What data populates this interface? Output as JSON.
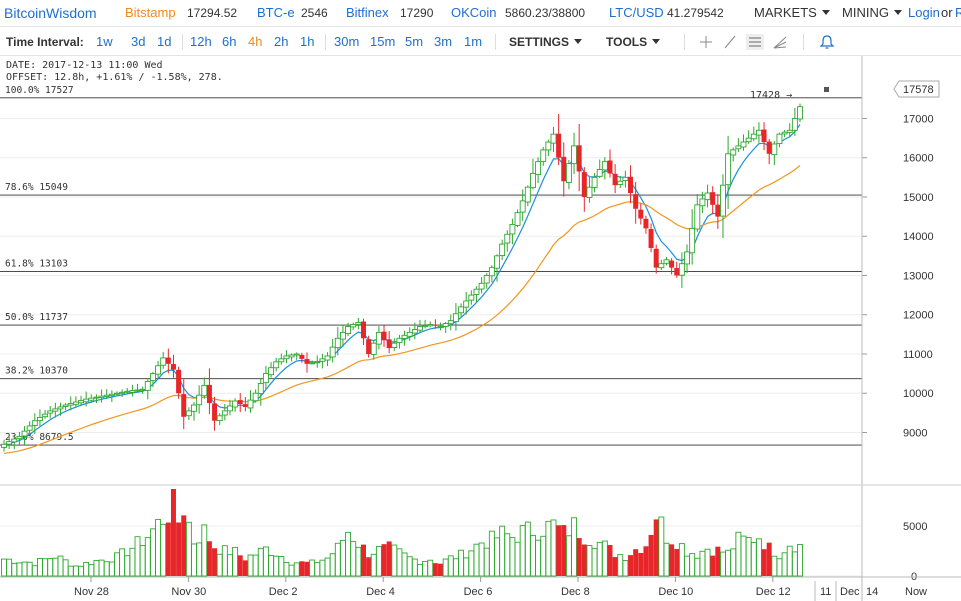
{
  "topbar": {
    "brand": "BitcoinWisdom",
    "markets": [
      {
        "name": "Bitstamp",
        "price": "17294.52",
        "active": true
      },
      {
        "name": "BTC-e",
        "price": "2546",
        "active": false
      },
      {
        "name": "Bitfinex",
        "price": "17290",
        "active": false
      },
      {
        "name": "OKCoin",
        "price": "5860.23/38800",
        "active": false
      },
      {
        "name": "LTC/USD",
        "price": "41.279542",
        "active": false
      }
    ],
    "menu_markets": "MARKETS",
    "menu_mining": "MINING",
    "login": "Login",
    "or": "or",
    "register": "R"
  },
  "toolbar": {
    "interval_label": "Time Interval:",
    "intervals": [
      "1w",
      "3d",
      "1d",
      "12h",
      "6h",
      "4h",
      "2h",
      "1h",
      "30m",
      "15m",
      "5m",
      "3m",
      "1m"
    ],
    "active_interval": "4h",
    "settings": "SETTINGS",
    "tools": "TOOLS"
  },
  "info": {
    "date": "DATE: 2017-12-13 11:00 Wed",
    "offset": "OFFSET: 12.8h, +1.61% / -1.58%, 278."
  },
  "chart_data": {
    "type": "candlestick",
    "symbol_price_tag": "17578",
    "last_marker": "17428 →",
    "price_axis_ticks": [
      17000,
      16000,
      15000,
      14000,
      13000,
      12000,
      11000,
      10000,
      9000
    ],
    "volume_axis_ticks": [
      5000,
      0
    ],
    "x_labels": [
      "Nov 28",
      "Nov 30",
      "Dec 2",
      "Dec 4",
      "Dec 6",
      "Dec 8",
      "Dec 10",
      "Dec 12"
    ],
    "x_labels_right": [
      "11",
      "Dec",
      "14",
      "Now"
    ],
    "fib_levels": [
      {
        "label": "100.0% 17527",
        "price": 17527
      },
      {
        "label": "78.6% 15049",
        "price": 15049
      },
      {
        "label": "61.8% 13103",
        "price": 13103
      },
      {
        "label": "50.0% 11737",
        "price": 11737
      },
      {
        "label": "38.2% 10370",
        "price": 10370
      },
      {
        "label": "23.6% 8679.5",
        "price": 8679.5
      }
    ],
    "colors": {
      "up": "#2ea82e",
      "down": "#e8262a",
      "ema_fast": "#1a8fe0",
      "ema_slow": "#f0961e",
      "grid": "#eeeeee"
    },
    "candle_anchors": [
      [
        0,
        8700
      ],
      [
        3,
        8900
      ],
      [
        6,
        9300
      ],
      [
        9,
        9550
      ],
      [
        12,
        9700
      ],
      [
        16,
        9850
      ],
      [
        20,
        9950
      ],
      [
        24,
        10050
      ],
      [
        27,
        10100
      ],
      [
        29,
        10500
      ],
      [
        31,
        10900
      ],
      [
        33,
        10600
      ],
      [
        35,
        9400
      ],
      [
        37,
        9700
      ],
      [
        39,
        10200
      ],
      [
        41,
        9300
      ],
      [
        43,
        9550
      ],
      [
        45,
        9800
      ],
      [
        47,
        9650
      ],
      [
        49,
        10000
      ],
      [
        51,
        10500
      ],
      [
        53,
        10800
      ],
      [
        55,
        10950
      ],
      [
        57,
        11000
      ],
      [
        59,
        10750
      ],
      [
        61,
        10800
      ],
      [
        63,
        10950
      ],
      [
        65,
        11400
      ],
      [
        67,
        11700
      ],
      [
        69,
        11800
      ],
      [
        71,
        11000
      ],
      [
        73,
        11550
      ],
      [
        75,
        11150
      ],
      [
        77,
        11400
      ],
      [
        79,
        11550
      ],
      [
        81,
        11700
      ],
      [
        83,
        11750
      ],
      [
        85,
        11700
      ],
      [
        87,
        11850
      ],
      [
        89,
        12200
      ],
      [
        91,
        12500
      ],
      [
        93,
        12800
      ],
      [
        95,
        13200
      ],
      [
        97,
        13800
      ],
      [
        99,
        14300
      ],
      [
        101,
        14900
      ],
      [
        103,
        15600
      ],
      [
        105,
        16200
      ],
      [
        107,
        16600
      ],
      [
        109,
        15400
      ],
      [
        111,
        16300
      ],
      [
        113,
        15000
      ],
      [
        115,
        15500
      ],
      [
        117,
        15900
      ],
      [
        119,
        15300
      ],
      [
        121,
        15500
      ],
      [
        123,
        14700
      ],
      [
        125,
        14200
      ],
      [
        127,
        13200
      ],
      [
        129,
        13400
      ],
      [
        131,
        13000
      ],
      [
        133,
        13600
      ],
      [
        135,
        14800
      ],
      [
        137,
        15100
      ],
      [
        139,
        14500
      ],
      [
        141,
        16100
      ],
      [
        143,
        16300
      ],
      [
        145,
        16500
      ],
      [
        147,
        16700
      ],
      [
        149,
        16100
      ],
      [
        151,
        16600
      ],
      [
        153,
        16700
      ],
      [
        155,
        17300
      ]
    ],
    "volume_anchors": [
      [
        0,
        1700
      ],
      [
        6,
        1300
      ],
      [
        10,
        2000
      ],
      [
        14,
        1000
      ],
      [
        18,
        1500
      ],
      [
        22,
        1900
      ],
      [
        24,
        2500
      ],
      [
        26,
        3200
      ],
      [
        28,
        4000
      ],
      [
        30,
        5200
      ],
      [
        31,
        5800
      ],
      [
        33,
        7000
      ],
      [
        34,
        5500
      ],
      [
        35,
        7000
      ],
      [
        37,
        3500
      ],
      [
        39,
        4500
      ],
      [
        41,
        3000
      ],
      [
        43,
        2500
      ],
      [
        45,
        2400
      ],
      [
        47,
        1800
      ],
      [
        49,
        2200
      ],
      [
        51,
        2700
      ],
      [
        53,
        2300
      ],
      [
        56,
        1400
      ],
      [
        60,
        1300
      ],
      [
        63,
        1800
      ],
      [
        65,
        2800
      ],
      [
        67,
        4500
      ],
      [
        69,
        3300
      ],
      [
        71,
        2300
      ],
      [
        73,
        2600
      ],
      [
        75,
        2800
      ],
      [
        77,
        2300
      ],
      [
        79,
        1800
      ],
      [
        81,
        1500
      ],
      [
        83,
        1700
      ],
      [
        85,
        1300
      ],
      [
        87,
        1800
      ],
      [
        89,
        2100
      ],
      [
        91,
        2700
      ],
      [
        93,
        3400
      ],
      [
        95,
        3600
      ],
      [
        97,
        4200
      ],
      [
        99,
        3900
      ],
      [
        101,
        4400
      ],
      [
        103,
        4600
      ],
      [
        105,
        4800
      ],
      [
        107,
        5100
      ],
      [
        109,
        4300
      ],
      [
        111,
        5000
      ],
      [
        113,
        4100
      ],
      [
        115,
        3600
      ],
      [
        117,
        3000
      ],
      [
        119,
        2300
      ],
      [
        121,
        2000
      ],
      [
        123,
        2700
      ],
      [
        125,
        3200
      ],
      [
        127,
        6300
      ],
      [
        129,
        4000
      ],
      [
        131,
        3600
      ],
      [
        133,
        2500
      ],
      [
        135,
        2200
      ],
      [
        137,
        2800
      ],
      [
        139,
        2600
      ],
      [
        141,
        2300
      ],
      [
        143,
        3600
      ],
      [
        145,
        3600
      ],
      [
        147,
        4000
      ],
      [
        149,
        2800
      ],
      [
        151,
        2200
      ],
      [
        153,
        3300
      ],
      [
        155,
        3000
      ]
    ]
  }
}
